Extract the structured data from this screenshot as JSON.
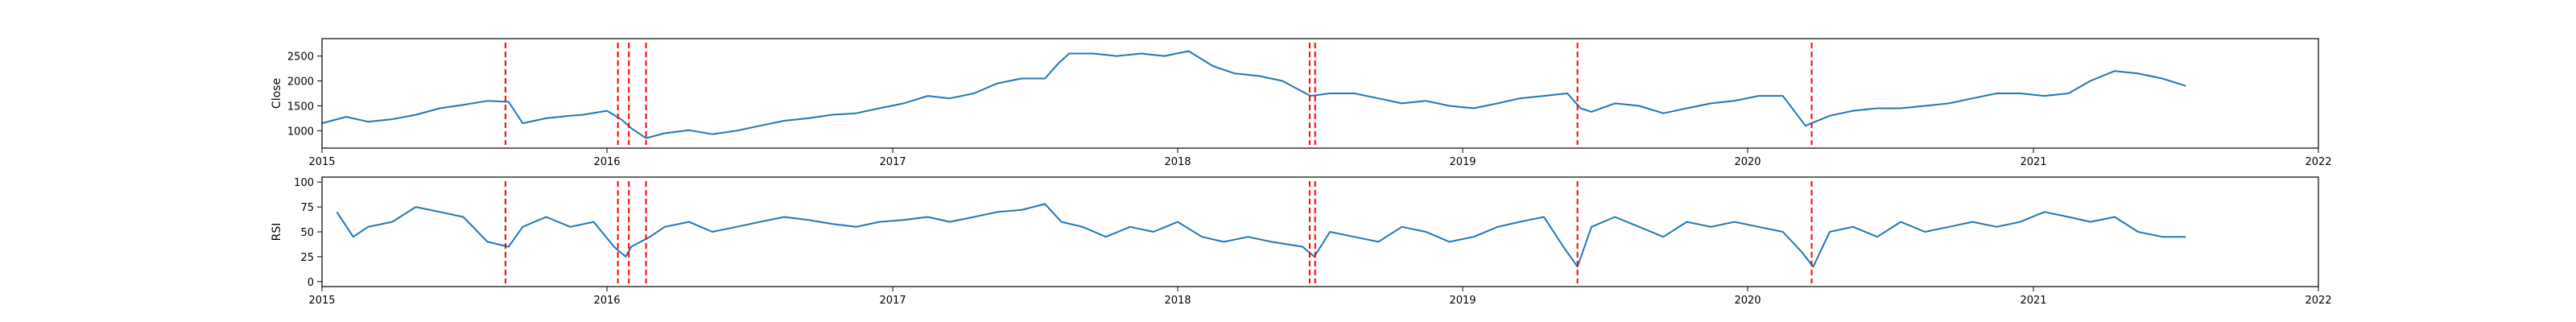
{
  "chart_data": [
    {
      "type": "line",
      "ylabel": "Close",
      "xlim": [
        "2015-01-01",
        "2022-01-01"
      ],
      "ylim": [
        650,
        2850
      ],
      "yticks": [
        1000,
        1500,
        2000,
        2500
      ],
      "xticks": [
        "2015",
        "2016",
        "2017",
        "2018",
        "2019",
        "2020",
        "2021",
        "2022"
      ],
      "line_color": "#1f77b4",
      "grid": false,
      "series": [
        {
          "x": [
            "2015-01-01",
            "2015-02-01",
            "2015-03-01",
            "2015-04-01",
            "2015-05-01",
            "2015-06-01",
            "2015-07-01",
            "2015-08-01",
            "2015-08-28",
            "2015-09-15",
            "2015-10-15",
            "2015-11-15",
            "2015-12-01",
            "2016-01-01",
            "2016-01-20",
            "2016-02-01",
            "2016-02-20",
            "2016-03-15",
            "2016-04-15",
            "2016-05-15",
            "2016-06-15",
            "2016-07-15",
            "2016-08-15",
            "2016-09-15",
            "2016-10-15",
            "2016-11-15",
            "2016-12-15",
            "2017-01-15",
            "2017-02-15",
            "2017-03-15",
            "2017-04-15",
            "2017-05-15",
            "2017-06-15",
            "2017-07-15",
            "2017-08-01",
            "2017-08-15",
            "2017-09-15",
            "2017-10-15",
            "2017-11-15",
            "2017-12-15",
            "2018-01-15",
            "2018-02-15",
            "2018-03-15",
            "2018-04-15",
            "2018-05-15",
            "2018-06-20",
            "2018-07-15",
            "2018-08-15",
            "2018-09-15",
            "2018-10-15",
            "2018-11-15",
            "2018-12-15",
            "2019-01-15",
            "2019-02-15",
            "2019-03-15",
            "2019-04-15",
            "2019-05-15",
            "2019-06-01",
            "2019-06-15",
            "2019-07-15",
            "2019-08-15",
            "2019-09-15",
            "2019-10-15",
            "2019-11-15",
            "2019-12-15",
            "2020-01-15",
            "2020-02-15",
            "2020-03-15",
            "2020-04-15",
            "2020-05-15",
            "2020-06-15",
            "2020-07-15",
            "2020-08-15",
            "2020-09-15",
            "2020-10-15",
            "2020-11-15",
            "2020-12-15",
            "2021-01-15",
            "2021-02-15",
            "2021-03-15",
            "2021-04-15",
            "2021-05-15",
            "2021-06-15",
            "2021-07-15"
          ],
          "y": [
            1150,
            1280,
            1180,
            1230,
            1320,
            1450,
            1520,
            1600,
            1580,
            1150,
            1250,
            1300,
            1320,
            1400,
            1220,
            1050,
            850,
            950,
            1010,
            930,
            1000,
            1100,
            1200,
            1250,
            1320,
            1350,
            1450,
            1550,
            1700,
            1650,
            1750,
            1950,
            2050,
            2050,
            2350,
            2550,
            2550,
            2500,
            2550,
            2500,
            2600,
            2300,
            2150,
            2100,
            2000,
            1700,
            1750,
            1750,
            1650,
            1550,
            1600,
            1500,
            1450,
            1550,
            1650,
            1700,
            1750,
            1450,
            1380,
            1550,
            1500,
            1350,
            1450,
            1550,
            1600,
            1700,
            1700,
            1100,
            1300,
            1400,
            1450,
            1450,
            1500,
            1550,
            1650,
            1750,
            1750,
            1700,
            1750,
            2000,
            2200,
            2150,
            2050,
            1900
          ]
        }
      ],
      "vlines": [
        "2015-08-24",
        "2016-01-15",
        "2016-01-29",
        "2016-02-20",
        "2018-06-19",
        "2018-06-26",
        "2019-05-28",
        "2020-03-23"
      ],
      "vline_color": "#ff0000"
    },
    {
      "type": "line",
      "ylabel": "RSI",
      "xlim": [
        "2015-01-01",
        "2022-01-01"
      ],
      "ylim": [
        -5,
        105
      ],
      "yticks": [
        0,
        25,
        50,
        75,
        100
      ],
      "xticks": [
        "2015",
        "2016",
        "2017",
        "2018",
        "2019",
        "2020",
        "2021",
        "2022"
      ],
      "line_color": "#1f77b4",
      "grid": false,
      "series": [
        {
          "x": [
            "2015-01-20",
            "2015-02-10",
            "2015-03-01",
            "2015-04-01",
            "2015-05-01",
            "2015-06-01",
            "2015-07-01",
            "2015-08-01",
            "2015-08-28",
            "2015-09-15",
            "2015-10-15",
            "2015-11-15",
            "2015-12-15",
            "2016-01-10",
            "2016-01-25",
            "2016-02-01",
            "2016-02-25",
            "2016-03-15",
            "2016-04-15",
            "2016-05-15",
            "2016-06-15",
            "2016-07-15",
            "2016-08-15",
            "2016-09-15",
            "2016-10-15",
            "2016-11-15",
            "2016-12-15",
            "2017-01-15",
            "2017-02-15",
            "2017-03-15",
            "2017-04-15",
            "2017-05-15",
            "2017-06-15",
            "2017-07-15",
            "2017-08-05",
            "2017-09-01",
            "2017-10-01",
            "2017-11-01",
            "2017-12-01",
            "2018-01-01",
            "2018-02-01",
            "2018-03-01",
            "2018-04-01",
            "2018-05-01",
            "2018-06-10",
            "2018-06-25",
            "2018-07-15",
            "2018-08-15",
            "2018-09-15",
            "2018-10-15",
            "2018-11-15",
            "2018-12-15",
            "2019-01-15",
            "2019-02-15",
            "2019-03-15",
            "2019-04-15",
            "2019-05-10",
            "2019-05-28",
            "2019-06-15",
            "2019-07-15",
            "2019-08-15",
            "2019-09-15",
            "2019-10-15",
            "2019-11-15",
            "2019-12-15",
            "2020-01-15",
            "2020-02-15",
            "2020-03-10",
            "2020-03-25",
            "2020-04-15",
            "2020-05-15",
            "2020-06-15",
            "2020-07-15",
            "2020-08-15",
            "2020-09-15",
            "2020-10-15",
            "2020-11-15",
            "2020-12-15",
            "2021-01-15",
            "2021-02-15",
            "2021-03-15",
            "2021-04-15",
            "2021-05-15",
            "2021-06-15",
            "2021-07-15"
          ],
          "y": [
            70,
            45,
            55,
            60,
            75,
            70,
            65,
            40,
            35,
            55,
            65,
            55,
            60,
            35,
            25,
            35,
            45,
            55,
            60,
            50,
            55,
            60,
            65,
            62,
            58,
            55,
            60,
            62,
            65,
            60,
            65,
            70,
            72,
            78,
            60,
            55,
            45,
            55,
            50,
            60,
            45,
            40,
            45,
            40,
            35,
            25,
            50,
            45,
            40,
            55,
            50,
            40,
            45,
            55,
            60,
            65,
            35,
            15,
            55,
            65,
            55,
            45,
            60,
            55,
            60,
            55,
            50,
            30,
            15,
            50,
            55,
            45,
            60,
            50,
            55,
            60,
            55,
            60,
            70,
            65,
            60,
            65,
            50,
            45,
            45
          ]
        }
      ],
      "vlines": [
        "2015-08-24",
        "2016-01-15",
        "2016-01-29",
        "2016-02-20",
        "2018-06-19",
        "2018-06-26",
        "2019-05-28",
        "2020-03-23"
      ],
      "vline_color": "#ff0000"
    }
  ]
}
